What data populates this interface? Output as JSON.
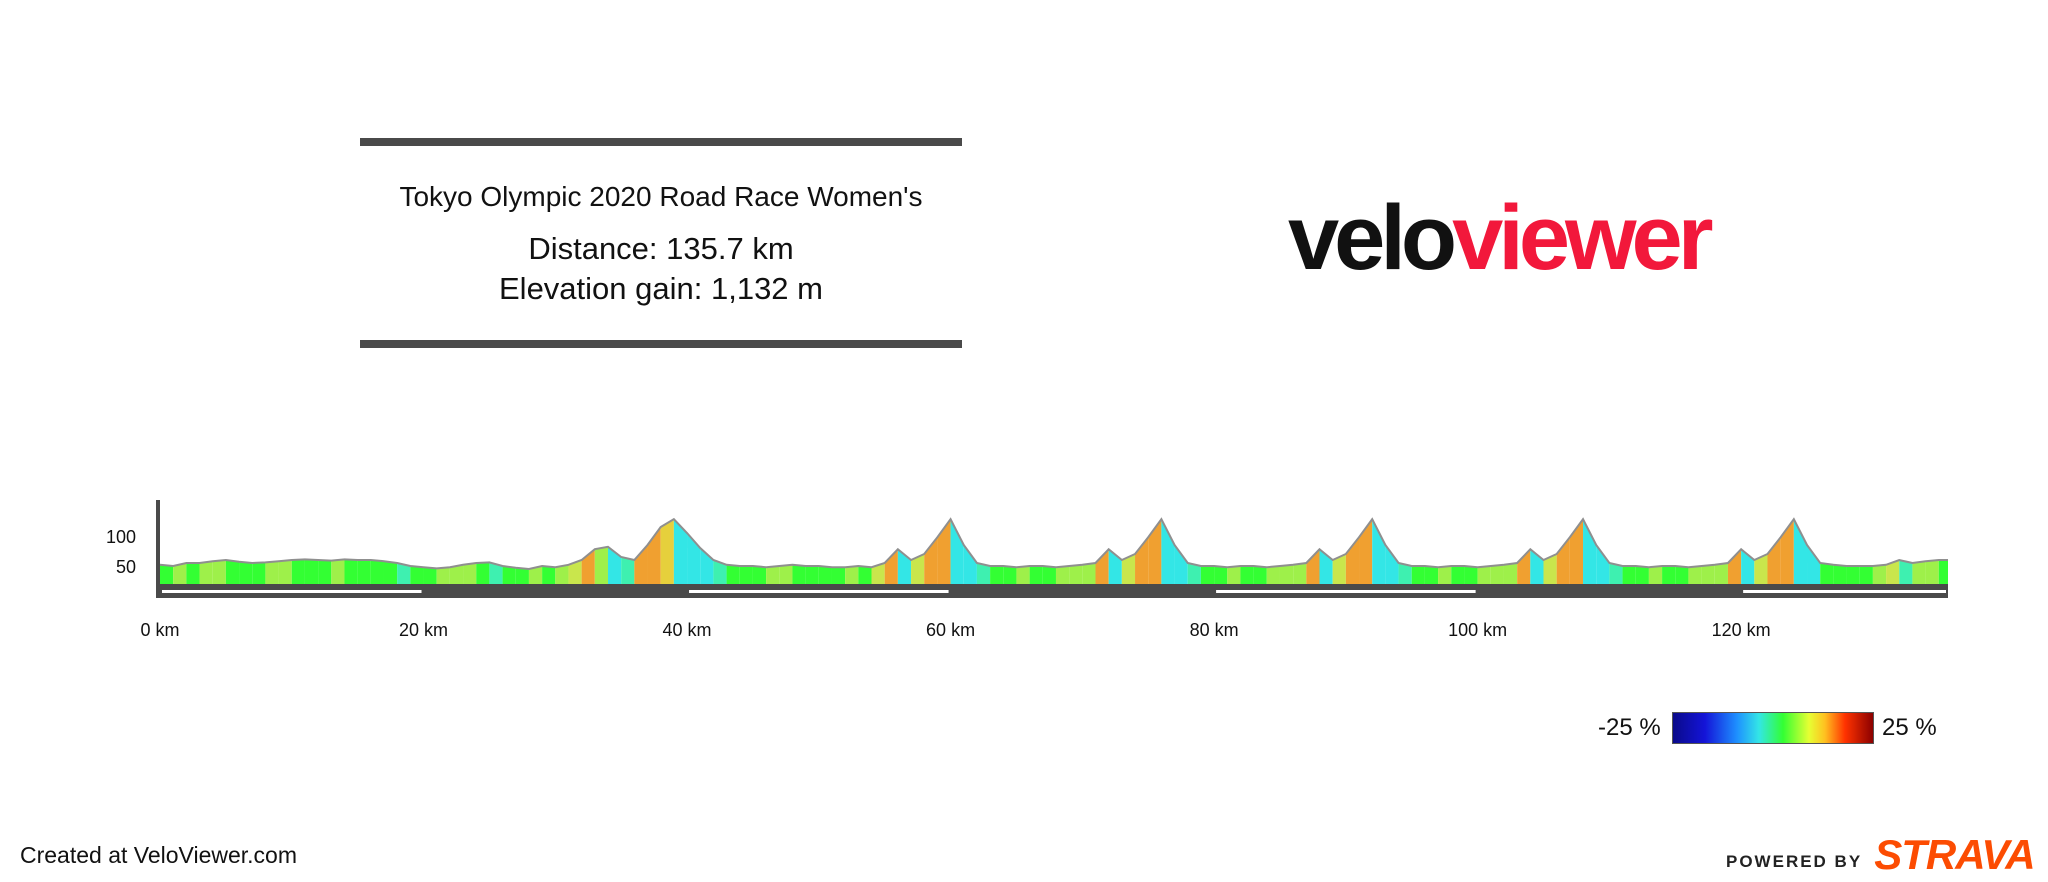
{
  "header": {
    "title": "Tokyo Olympic 2020 Road Race Women's",
    "distance": "Distance: 135.7 km",
    "elevation_gain": "Elevation gain: 1,132 m"
  },
  "logo": {
    "part1": "velo",
    "part2": "viewer"
  },
  "colors": {
    "logo_dark": "#111111",
    "logo_accent": "#f2183b",
    "strava": "#fc4c02",
    "profile_base": "#33ff33",
    "axis": "#4a4a4a"
  },
  "chart_data": {
    "type": "area",
    "x_unit": "km",
    "y_unit": "m",
    "xlim": [
      0,
      135.7
    ],
    "ylim": [
      20,
      160
    ],
    "x_ticks": [
      0,
      20,
      40,
      60,
      80,
      100,
      120
    ],
    "x_tick_labels": [
      "0 km",
      "20 km",
      "40 km",
      "60 km",
      "80 km",
      "100 km",
      "120 km"
    ],
    "y_ticks": [
      50,
      100
    ],
    "y_tick_labels": [
      "50",
      "100"
    ],
    "elevation": [
      [
        0,
        52
      ],
      [
        1,
        50
      ],
      [
        2,
        55
      ],
      [
        3,
        55
      ],
      [
        4,
        58
      ],
      [
        5,
        60
      ],
      [
        6,
        57
      ],
      [
        7,
        55
      ],
      [
        8,
        56
      ],
      [
        9,
        58
      ],
      [
        10,
        60
      ],
      [
        11,
        61
      ],
      [
        12,
        60
      ],
      [
        13,
        59
      ],
      [
        14,
        61
      ],
      [
        15,
        60
      ],
      [
        16,
        60
      ],
      [
        17,
        58
      ],
      [
        18,
        55
      ],
      [
        19,
        50
      ],
      [
        20,
        48
      ],
      [
        21,
        46
      ],
      [
        22,
        48
      ],
      [
        23,
        52
      ],
      [
        24,
        55
      ],
      [
        25,
        56
      ],
      [
        26,
        50
      ],
      [
        27,
        47
      ],
      [
        28,
        45
      ],
      [
        29,
        50
      ],
      [
        30,
        48
      ],
      [
        31,
        52
      ],
      [
        32,
        60
      ],
      [
        33,
        78
      ],
      [
        34,
        82
      ],
      [
        35,
        65
      ],
      [
        36,
        60
      ],
      [
        37,
        85
      ],
      [
        38,
        115
      ],
      [
        39,
        128
      ],
      [
        40,
        105
      ],
      [
        41,
        80
      ],
      [
        42,
        60
      ],
      [
        43,
        52
      ],
      [
        44,
        50
      ],
      [
        45,
        50
      ],
      [
        46,
        48
      ],
      [
        47,
        50
      ],
      [
        48,
        52
      ],
      [
        49,
        50
      ],
      [
        50,
        50
      ],
      [
        51,
        48
      ],
      [
        52,
        48
      ],
      [
        53,
        50
      ],
      [
        54,
        48
      ],
      [
        55,
        55
      ],
      [
        56,
        78
      ],
      [
        57,
        60
      ],
      [
        58,
        70
      ],
      [
        59,
        98
      ],
      [
        60,
        128
      ],
      [
        61,
        85
      ],
      [
        62,
        55
      ],
      [
        63,
        50
      ],
      [
        64,
        50
      ],
      [
        65,
        48
      ],
      [
        66,
        50
      ],
      [
        67,
        50
      ],
      [
        68,
        48
      ],
      [
        69,
        50
      ],
      [
        70,
        52
      ],
      [
        71,
        55
      ],
      [
        72,
        78
      ],
      [
        73,
        60
      ],
      [
        74,
        70
      ],
      [
        75,
        98
      ],
      [
        76,
        128
      ],
      [
        77,
        85
      ],
      [
        78,
        55
      ],
      [
        79,
        50
      ],
      [
        80,
        50
      ],
      [
        81,
        48
      ],
      [
        82,
        50
      ],
      [
        83,
        50
      ],
      [
        84,
        48
      ],
      [
        85,
        50
      ],
      [
        86,
        52
      ],
      [
        87,
        55
      ],
      [
        88,
        78
      ],
      [
        89,
        60
      ],
      [
        90,
        70
      ],
      [
        91,
        98
      ],
      [
        92,
        128
      ],
      [
        93,
        85
      ],
      [
        94,
        55
      ],
      [
        95,
        50
      ],
      [
        96,
        50
      ],
      [
        97,
        48
      ],
      [
        98,
        50
      ],
      [
        99,
        50
      ],
      [
        100,
        48
      ],
      [
        101,
        50
      ],
      [
        102,
        52
      ],
      [
        103,
        55
      ],
      [
        104,
        78
      ],
      [
        105,
        60
      ],
      [
        106,
        70
      ],
      [
        107,
        98
      ],
      [
        108,
        128
      ],
      [
        109,
        85
      ],
      [
        110,
        55
      ],
      [
        111,
        50
      ],
      [
        112,
        50
      ],
      [
        113,
        48
      ],
      [
        114,
        50
      ],
      [
        115,
        50
      ],
      [
        116,
        48
      ],
      [
        117,
        50
      ],
      [
        118,
        52
      ],
      [
        119,
        55
      ],
      [
        120,
        78
      ],
      [
        121,
        60
      ],
      [
        122,
        70
      ],
      [
        123,
        98
      ],
      [
        124,
        128
      ],
      [
        125,
        85
      ],
      [
        126,
        55
      ],
      [
        127,
        52
      ],
      [
        128,
        50
      ],
      [
        129,
        50
      ],
      [
        130,
        50
      ],
      [
        131,
        52
      ],
      [
        132,
        60
      ],
      [
        133,
        55
      ],
      [
        134,
        58
      ],
      [
        135,
        60
      ],
      [
        135.7,
        60
      ]
    ]
  },
  "legend": {
    "min_label": "-25 %",
    "max_label": "25 %"
  },
  "footer": {
    "created": "Created at VeloViewer.com",
    "powered": "POWERED BY",
    "strava": "STRAVA"
  }
}
